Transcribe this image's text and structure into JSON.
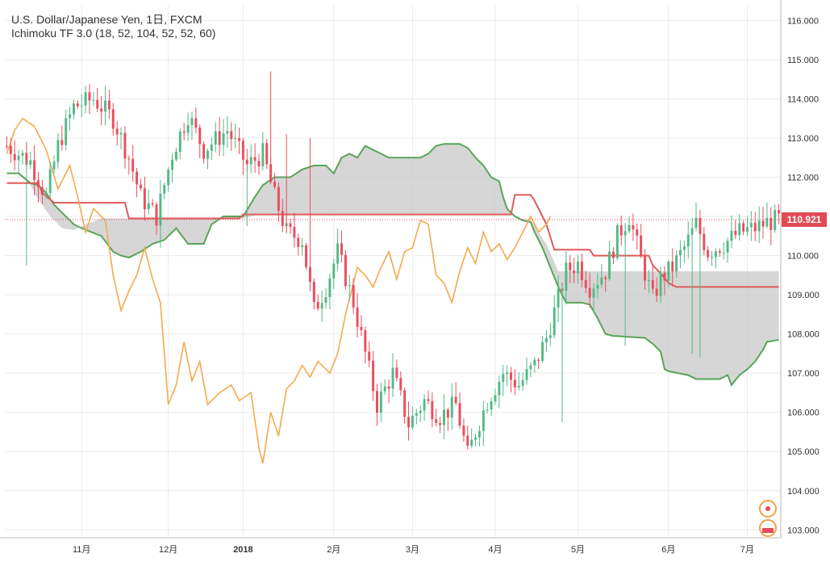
{
  "header": {
    "symbol": "U.S. Dollar/Japanese Yen, 1日, FXCM",
    "indicator": "Ichimoku TF 3.0 (18, 52, 104, 52, 52, 60)"
  },
  "colors": {
    "up": "#53b987",
    "down": "#eb4d5c",
    "chikou": "#f5a94e",
    "kijun": "#e05a5a",
    "senkou_b": "#5aa35a",
    "cloud": "#c8c8c8",
    "grid": "#ececec",
    "axis_text": "#333333"
  },
  "chart_data": {
    "type": "candlestick",
    "ylim": [
      102.8,
      116.4
    ],
    "y_ticks": [
      "116.000",
      "115.000",
      "114.000",
      "113.000",
      "112.000",
      "111.000",
      "110.000",
      "109.000",
      "108.000",
      "107.000",
      "106.000",
      "105.000",
      "104.000",
      "103.000"
    ],
    "x_ticks": [
      {
        "label": "11月",
        "index": 19
      },
      {
        "label": "12月",
        "index": 41
      },
      {
        "label": "2018",
        "index": 60
      },
      {
        "label": "2月",
        "index": 83
      },
      {
        "label": "3月",
        "index": 103
      },
      {
        "label": "4月",
        "index": 124
      },
      {
        "label": "5月",
        "index": 145
      },
      {
        "label": "6月",
        "index": 168
      },
      {
        "label": "7月",
        "index": 188
      }
    ],
    "last_price": "110.921",
    "last_value": 110.921,
    "candle_count": 197,
    "close_series": [
      [
        0,
        112.8
      ],
      [
        6,
        112.4
      ],
      [
        10,
        111.5
      ],
      [
        13,
        112.8
      ],
      [
        17,
        113.8
      ],
      [
        22,
        114.0
      ],
      [
        27,
        113.5
      ],
      [
        31,
        112.5
      ],
      [
        34,
        111.5
      ],
      [
        38,
        111.0
      ],
      [
        42,
        112.6
      ],
      [
        46,
        113.6
      ],
      [
        50,
        112.7
      ],
      [
        56,
        113.2
      ],
      [
        61,
        112.3
      ],
      [
        65,
        112.6
      ],
      [
        68,
        111.5
      ],
      [
        71,
        110.6
      ],
      [
        75,
        110.4
      ],
      [
        78,
        108.6
      ],
      [
        81,
        109.2
      ],
      [
        84,
        110.1
      ],
      [
        88,
        108.8
      ],
      [
        91,
        107.5
      ],
      [
        94,
        106.2
      ],
      [
        98,
        107.0
      ],
      [
        102,
        105.7
      ],
      [
        106,
        106.3
      ],
      [
        110,
        105.9
      ],
      [
        114,
        106.2
      ],
      [
        117,
        104.9
      ],
      [
        119,
        105.5
      ],
      [
        122,
        106.3
      ],
      [
        126,
        107.0
      ],
      [
        130,
        106.7
      ],
      [
        134,
        107.2
      ],
      [
        137,
        107.9
      ],
      [
        140,
        108.9
      ],
      [
        142,
        109.6
      ],
      [
        145,
        109.8
      ],
      [
        148,
        109.2
      ],
      [
        152,
        109.6
      ],
      [
        155,
        110.5
      ],
      [
        158,
        111.0
      ],
      [
        161,
        109.9
      ],
      [
        164,
        108.9
      ],
      [
        166,
        109.4
      ],
      [
        169,
        109.7
      ],
      [
        172,
        110.2
      ],
      [
        175,
        110.8
      ],
      [
        178,
        110.1
      ],
      [
        182,
        110.3
      ],
      [
        186,
        110.6
      ],
      [
        190,
        110.7
      ],
      [
        193,
        110.85
      ],
      [
        196,
        110.92
      ]
    ],
    "chikou_series": [
      [
        0,
        112.6
      ],
      [
        2,
        113.2
      ],
      [
        4,
        113.5
      ],
      [
        7,
        113.3
      ],
      [
        10,
        112.7
      ],
      [
        13,
        111.7
      ],
      [
        16,
        112.3
      ],
      [
        18,
        111.5
      ],
      [
        20,
        110.6
      ],
      [
        22,
        111.2
      ],
      [
        25,
        110.9
      ],
      [
        27,
        109.5
      ],
      [
        29,
        108.6
      ],
      [
        31,
        109.1
      ],
      [
        33,
        109.5
      ],
      [
        35,
        110.2
      ],
      [
        37,
        109.4
      ],
      [
        39,
        108.8
      ],
      [
        41,
        106.2
      ],
      [
        43,
        106.7
      ],
      [
        45,
        107.8
      ],
      [
        47,
        106.8
      ],
      [
        49,
        107.3
      ],
      [
        51,
        106.2
      ],
      [
        54,
        106.5
      ],
      [
        57,
        106.7
      ],
      [
        59,
        106.3
      ],
      [
        62,
        106.5
      ],
      [
        64,
        105.1
      ],
      [
        65,
        104.7
      ],
      [
        67,
        106.0
      ],
      [
        69,
        105.4
      ],
      [
        71,
        106.6
      ],
      [
        73,
        106.8
      ],
      [
        75,
        107.2
      ],
      [
        77,
        106.9
      ],
      [
        79,
        107.3
      ],
      [
        82,
        107.0
      ],
      [
        84,
        107.5
      ],
      [
        86,
        108.5
      ],
      [
        88,
        109.3
      ],
      [
        89,
        109.7
      ],
      [
        91,
        109.5
      ],
      [
        93,
        109.2
      ],
      [
        95,
        109.7
      ],
      [
        97,
        110.1
      ],
      [
        99,
        109.4
      ],
      [
        101,
        110.1
      ],
      [
        103,
        110.2
      ],
      [
        105,
        110.9
      ],
      [
        107,
        110.8
      ],
      [
        109,
        109.5
      ],
      [
        111,
        109.3
      ],
      [
        113,
        108.8
      ],
      [
        115,
        109.6
      ],
      [
        117,
        110.2
      ],
      [
        119,
        109.8
      ],
      [
        121,
        110.6
      ],
      [
        123,
        110.1
      ],
      [
        125,
        110.3
      ],
      [
        127,
        109.9
      ],
      [
        129,
        110.2
      ],
      [
        131,
        110.6
      ],
      [
        133,
        111.0
      ],
      [
        135,
        110.6
      ],
      [
        137,
        110.8
      ],
      [
        138,
        111.0
      ]
    ],
    "kijun_series": [
      [
        0,
        111.85
      ],
      [
        8,
        111.85
      ],
      [
        9,
        111.6
      ],
      [
        12,
        111.35
      ],
      [
        30,
        111.35
      ],
      [
        31,
        110.95
      ],
      [
        59,
        110.95
      ],
      [
        60,
        111.05
      ],
      [
        128,
        111.05
      ],
      [
        129,
        111.55
      ],
      [
        133,
        111.55
      ],
      [
        134,
        111.4
      ],
      [
        137,
        110.8
      ],
      [
        139,
        110.15
      ],
      [
        148,
        110.15
      ],
      [
        149,
        110.0
      ],
      [
        163,
        110.0
      ],
      [
        164,
        109.75
      ],
      [
        166,
        109.55
      ],
      [
        168,
        109.3
      ],
      [
        170,
        109.2
      ],
      [
        196,
        109.2
      ]
    ],
    "senkou_a_series": [
      [
        0,
        112.1
      ],
      [
        3,
        112.1
      ],
      [
        5,
        111.9
      ],
      [
        6,
        111.8
      ],
      [
        7,
        111.6
      ],
      [
        9,
        111.3
      ],
      [
        11,
        111.0
      ],
      [
        12,
        110.9
      ],
      [
        14,
        110.7
      ],
      [
        17,
        110.65
      ],
      [
        19,
        110.75
      ],
      [
        24,
        110.95
      ],
      [
        60,
        110.95
      ],
      [
        64,
        111.05
      ],
      [
        128,
        111.05
      ],
      [
        130,
        110.95
      ],
      [
        133,
        110.9
      ],
      [
        134,
        110.8
      ],
      [
        135,
        110.6
      ],
      [
        137,
        110.3
      ],
      [
        140,
        109.6
      ],
      [
        196,
        109.6
      ]
    ],
    "senkou_b_series": [
      [
        0,
        112.1
      ],
      [
        3,
        112.1
      ],
      [
        6,
        111.85
      ],
      [
        8,
        111.8
      ],
      [
        10,
        111.6
      ],
      [
        12,
        111.3
      ],
      [
        15,
        111.0
      ],
      [
        17,
        110.8
      ],
      [
        19,
        110.7
      ],
      [
        24,
        110.5
      ],
      [
        27,
        110.1
      ],
      [
        29,
        110.0
      ],
      [
        31,
        109.95
      ],
      [
        34,
        110.1
      ],
      [
        37,
        110.3
      ],
      [
        40,
        110.4
      ],
      [
        43,
        110.7
      ],
      [
        46,
        110.3
      ],
      [
        48,
        110.3
      ],
      [
        50,
        110.3
      ],
      [
        52,
        110.8
      ],
      [
        55,
        111.0
      ],
      [
        60,
        111.0
      ],
      [
        63,
        111.5
      ],
      [
        65,
        111.8
      ],
      [
        68,
        112.0
      ],
      [
        72,
        112.0
      ],
      [
        75,
        112.2
      ],
      [
        78,
        112.3
      ],
      [
        81,
        112.3
      ],
      [
        83,
        112.1
      ],
      [
        85,
        112.5
      ],
      [
        87,
        112.6
      ],
      [
        89,
        112.5
      ],
      [
        91,
        112.8
      ],
      [
        93,
        112.7
      ],
      [
        95,
        112.6
      ],
      [
        97,
        112.5
      ],
      [
        105,
        112.5
      ],
      [
        107,
        112.6
      ],
      [
        109,
        112.8
      ],
      [
        111,
        112.85
      ],
      [
        115,
        112.85
      ],
      [
        117,
        112.75
      ],
      [
        119,
        112.5
      ],
      [
        121,
        112.3
      ],
      [
        123,
        112.0
      ],
      [
        125,
        111.9
      ],
      [
        126,
        111.5
      ],
      [
        127,
        111.2
      ],
      [
        129,
        111.0
      ],
      [
        131,
        110.9
      ],
      [
        133,
        110.85
      ],
      [
        134,
        110.6
      ],
      [
        136,
        110.2
      ],
      [
        138,
        109.7
      ],
      [
        140,
        109.2
      ],
      [
        142,
        108.8
      ],
      [
        146,
        108.8
      ],
      [
        148,
        108.75
      ],
      [
        150,
        108.4
      ],
      [
        152,
        108.0
      ],
      [
        154,
        107.95
      ],
      [
        162,
        107.9
      ],
      [
        164,
        107.75
      ],
      [
        166,
        107.55
      ],
      [
        167,
        107.1
      ],
      [
        168,
        107.05
      ],
      [
        173,
        106.95
      ],
      [
        175,
        106.85
      ],
      [
        181,
        106.85
      ],
      [
        183,
        106.95
      ],
      [
        184,
        106.7
      ],
      [
        186,
        106.95
      ],
      [
        188,
        107.1
      ],
      [
        190,
        107.3
      ],
      [
        192,
        107.6
      ],
      [
        193,
        107.8
      ],
      [
        196,
        107.85
      ]
    ],
    "spikes": [
      {
        "index": 5,
        "low": 109.75
      },
      {
        "index": 39,
        "low": 110.2
      },
      {
        "index": 61,
        "low": 110.75
      },
      {
        "index": 67,
        "high": 114.7
      },
      {
        "index": 71,
        "high": 113.1
      },
      {
        "index": 77,
        "high": 113.0
      },
      {
        "index": 141,
        "low": 105.75
      },
      {
        "index": 157,
        "low": 107.7
      },
      {
        "index": 174,
        "low": 107.5
      },
      {
        "index": 176,
        "low": 107.4
      }
    ]
  }
}
